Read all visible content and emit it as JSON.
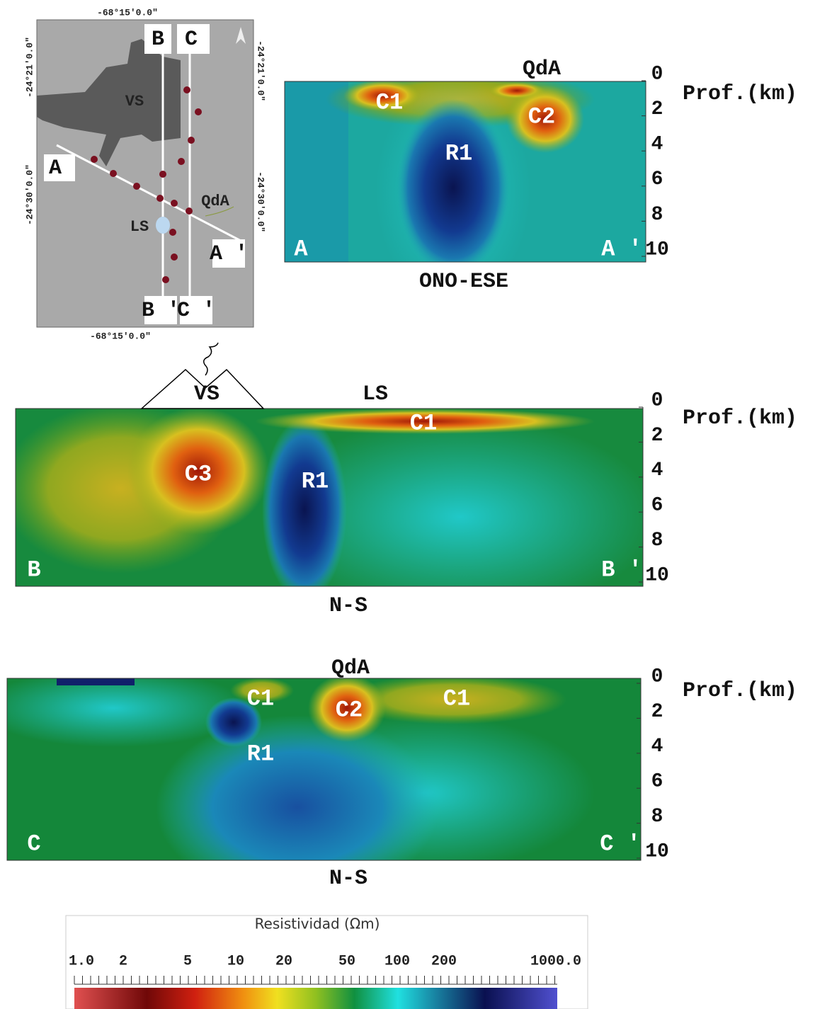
{
  "map": {
    "lon_top": "-68°15′0.0″",
    "lon_bottom": "-68°15′0.0″",
    "lat_left": [
      "-24°21′0.0″",
      "-24°30′0.0″"
    ],
    "lat_right": [
      "-24°21′0.0″",
      "-24°30′0.0″"
    ],
    "profile_ends": [
      "A",
      "A '",
      "B",
      "B '",
      "C",
      "C '"
    ],
    "places": [
      "VS",
      "LS",
      "QdA"
    ]
  },
  "sections": [
    {
      "title": "ONO-ESE",
      "start": "A",
      "end": "A '",
      "depth_label": "Prof.(km)",
      "depth_ticks": [
        0,
        2,
        4,
        6,
        8,
        10
      ],
      "surface_labels": [
        "QdA"
      ],
      "anomalies": [
        "C1",
        "C2",
        "R1"
      ]
    },
    {
      "title": "N-S",
      "start": "B",
      "end": "B '",
      "depth_label": "Prof.(km)",
      "depth_ticks": [
        0,
        2,
        4,
        6,
        8,
        10
      ],
      "surface_labels": [
        "VS",
        "LS"
      ],
      "anomalies": [
        "C3",
        "R1",
        "C1"
      ]
    },
    {
      "title": "N-S",
      "start": "C",
      "end": "C '",
      "depth_label": "Prof.(km)",
      "depth_ticks": [
        0,
        2,
        4,
        6,
        8,
        10
      ],
      "surface_labels": [
        "QdA"
      ],
      "anomalies": [
        "C1",
        "C2",
        "C1",
        "R1"
      ]
    }
  ],
  "colorbar": {
    "title": "Resistividad (Ωm)",
    "ticks": [
      "1.0",
      "2",
      "5",
      "10",
      "20",
      "50",
      "100",
      "200",
      "1000.0"
    ]
  }
}
